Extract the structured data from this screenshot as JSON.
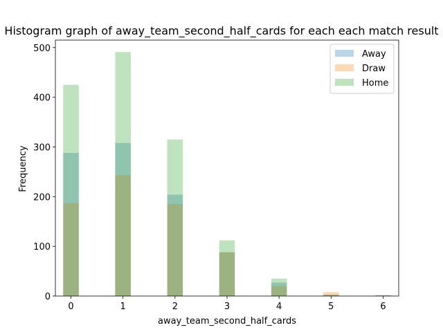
{
  "chart_data": {
    "type": "bar",
    "title": "Histogram graph of away_team_second_half_cards for each each match result",
    "xlabel": "away_team_second_half_cards",
    "ylabel": "Frequency",
    "xlim": [
      -0.3,
      6.3
    ],
    "ylim": [
      0,
      515
    ],
    "xticks": [
      0,
      1,
      2,
      3,
      4,
      5,
      6
    ],
    "yticks": [
      0,
      100,
      200,
      300,
      400,
      500
    ],
    "bin_width": 0.3,
    "legend_position": "top-right",
    "series": [
      {
        "name": "Away",
        "color": "#1f77b4",
        "opacity": 0.3,
        "bins": [
          {
            "x": 0,
            "value": 288
          },
          {
            "x": 1,
            "value": 308
          },
          {
            "x": 2,
            "value": 204
          },
          {
            "x": 3,
            "value": 88
          },
          {
            "x": 4,
            "value": 27
          },
          {
            "x": 5,
            "value": 3
          },
          {
            "x": 6,
            "value": 1
          }
        ]
      },
      {
        "name": "Draw",
        "color": "#ff7f0e",
        "opacity": 0.3,
        "bins": [
          {
            "x": 0,
            "value": 187
          },
          {
            "x": 1,
            "value": 243
          },
          {
            "x": 2,
            "value": 185
          },
          {
            "x": 3,
            "value": 88
          },
          {
            "x": 4,
            "value": 20
          },
          {
            "x": 5,
            "value": 8
          },
          {
            "x": 6,
            "value": 1
          }
        ]
      },
      {
        "name": "Home",
        "color": "#2ca02c",
        "opacity": 0.3,
        "bins": [
          {
            "x": 0,
            "value": 425
          },
          {
            "x": 1,
            "value": 491
          },
          {
            "x": 2,
            "value": 315
          },
          {
            "x": 3,
            "value": 112
          },
          {
            "x": 4,
            "value": 35
          },
          {
            "x": 5,
            "value": 2
          },
          {
            "x": 6,
            "value": 2
          }
        ]
      }
    ]
  }
}
